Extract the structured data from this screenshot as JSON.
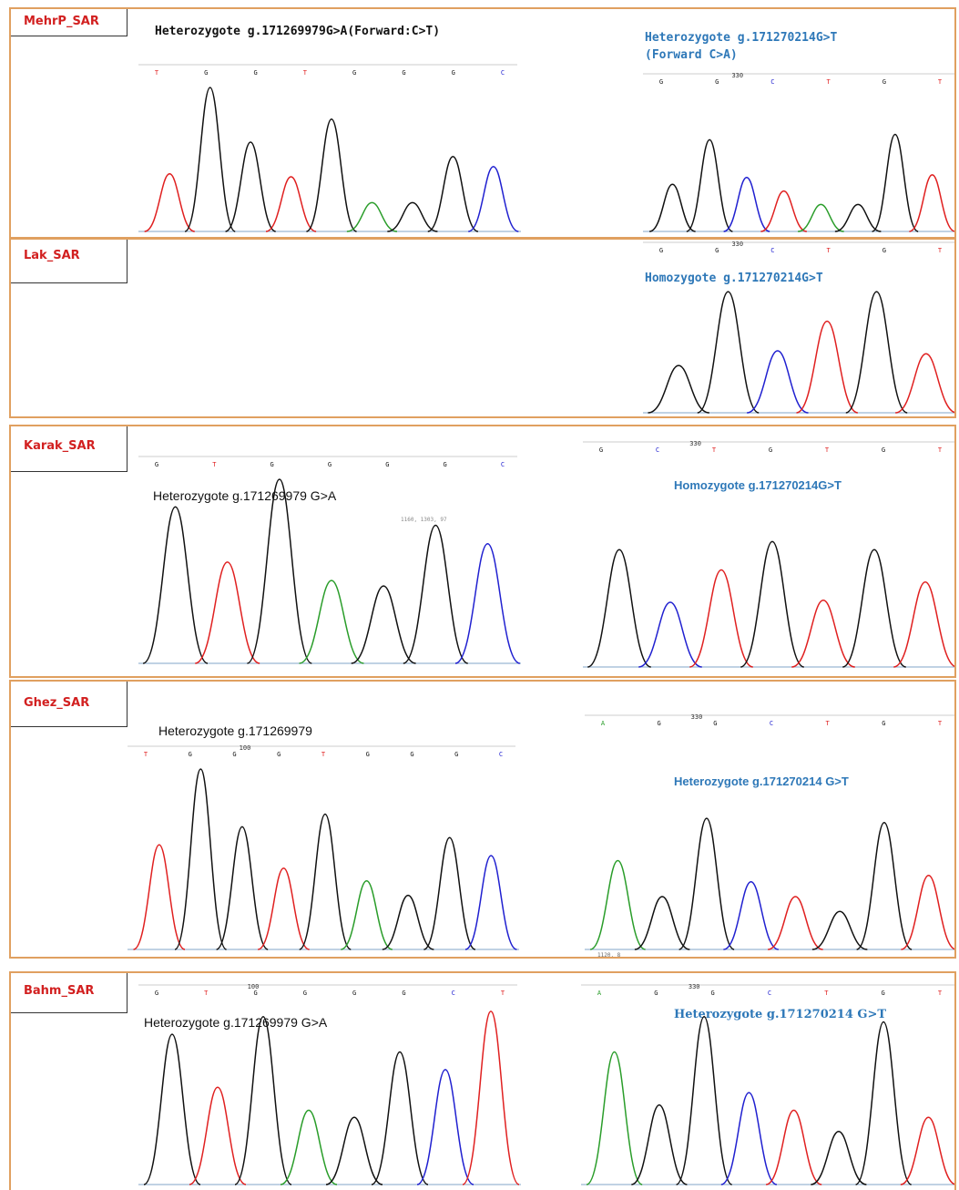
{
  "colors": {
    "A": "#2a9d2a",
    "C": "#2020d0",
    "G": "#111111",
    "T": "#e02020",
    "panel_border": "#e0a060",
    "sample_label": "#d22020",
    "annotation_blue": "#2e78b8"
  },
  "panels": [
    {
      "sample": "MehrP_SAR",
      "left_annotation": "Heterozygote g.171269979G>A(Forward:C>T)",
      "right_annotation_line1": "Heterozygote g.171270214G>T",
      "right_annotation_line2": "(Forward C>A)",
      "left_bases": [
        "T",
        "G",
        "G",
        "T",
        "G",
        "G",
        "G",
        "C"
      ],
      "left_pos_label": "",
      "right_bases": [
        "G",
        "G",
        "C",
        "T",
        "G",
        "T"
      ],
      "right_pos_label": "330",
      "left_peaks": [
        [
          "T",
          0.4
        ],
        [
          "G",
          1.0
        ],
        [
          "G",
          0.62
        ],
        [
          "T",
          0.38
        ],
        [
          "G",
          0.78
        ],
        [
          "A",
          0.2
        ],
        [
          "G",
          0.2
        ],
        [
          "G",
          0.52
        ],
        [
          "C",
          0.45
        ]
      ],
      "right_peaks": [
        [
          "G",
          0.35
        ],
        [
          "G",
          0.68
        ],
        [
          "C",
          0.4
        ],
        [
          "T",
          0.3
        ],
        [
          "A",
          0.2
        ],
        [
          "G",
          0.2
        ],
        [
          "G",
          0.72
        ],
        [
          "T",
          0.42
        ]
      ]
    },
    {
      "sample": "Lak_SAR",
      "right_annotation": "Homozygote g.171270214G>T",
      "right_bases": [
        "G",
        "G",
        "C",
        "T",
        "G",
        "T"
      ],
      "right_pos_label": "330",
      "right_peaks": [
        [
          "G",
          0.32
        ],
        [
          "G",
          0.82
        ],
        [
          "C",
          0.42
        ],
        [
          "T",
          0.62
        ],
        [
          "G",
          0.82
        ],
        [
          "T",
          0.4
        ]
      ]
    },
    {
      "sample": "Karak_SAR",
      "left_annotation": "Heterozygote g.171269979 G>A",
      "left_bases": [
        "G",
        "T",
        "G",
        "G",
        "G",
        "G",
        "C"
      ],
      "left_cursor_readout": "1160, 1303, 97",
      "right_annotation": "Homozygote g.171270214G>T",
      "right_bases": [
        "G",
        "C",
        "T",
        "G",
        "T",
        "G",
        "T"
      ],
      "right_pos_label": "330",
      "left_peaks": [
        [
          "G",
          0.85
        ],
        [
          "T",
          0.55
        ],
        [
          "G",
          1.0
        ],
        [
          "A",
          0.45
        ],
        [
          "G",
          0.42
        ],
        [
          "G",
          0.75
        ],
        [
          "C",
          0.65
        ]
      ],
      "right_peaks": [
        [
          "G",
          0.58
        ],
        [
          "C",
          0.32
        ],
        [
          "T",
          0.48
        ],
        [
          "G",
          0.62
        ],
        [
          "T",
          0.33
        ],
        [
          "G",
          0.58
        ],
        [
          "T",
          0.42
        ]
      ]
    },
    {
      "sample": "Ghez_SAR",
      "left_annotation": "Heterozygote g.171269979",
      "left_bases": [
        "T",
        "G",
        "G",
        "G",
        "T",
        "G",
        "G",
        "G",
        "C"
      ],
      "left_pos_label": "100",
      "right_annotation": "Heterozygote g.171270214 G>T",
      "right_bases": [
        "A",
        "G",
        "G",
        "C",
        "T",
        "G",
        "T"
      ],
      "right_pos_label": "330",
      "right_cursor_readout": "1120, 8",
      "left_peaks": [
        [
          "T",
          0.58
        ],
        [
          "G",
          1.0
        ],
        [
          "G",
          0.68
        ],
        [
          "T",
          0.45
        ],
        [
          "G",
          0.75
        ],
        [
          "A",
          0.38
        ],
        [
          "G",
          0.3
        ],
        [
          "G",
          0.62
        ],
        [
          "C",
          0.52
        ]
      ],
      "right_peaks": [
        [
          "A",
          0.42
        ],
        [
          "G",
          0.25
        ],
        [
          "G",
          0.62
        ],
        [
          "C",
          0.32
        ],
        [
          "T",
          0.25
        ],
        [
          "G",
          0.18
        ],
        [
          "G",
          0.6
        ],
        [
          "T",
          0.35
        ]
      ]
    },
    {
      "sample": "Bahm_SAR",
      "left_annotation": "Heterozygote g.171269979 G>A",
      "left_bases": [
        "G",
        "T",
        "G",
        "G",
        "G",
        "G",
        "C",
        "T"
      ],
      "left_pos_label": "100",
      "right_annotation": "Heterozygote g.171270214 G>T",
      "right_bases": [
        "A",
        "G",
        "G",
        "C",
        "T",
        "G",
        "T"
      ],
      "right_pos_label": "330",
      "left_peaks": [
        [
          "G",
          0.85
        ],
        [
          "T",
          0.55
        ],
        [
          "G",
          0.95
        ],
        [
          "A",
          0.42
        ],
        [
          "G",
          0.38
        ],
        [
          "G",
          0.75
        ],
        [
          "C",
          0.65
        ],
        [
          "T",
          0.98
        ]
      ],
      "right_peaks": [
        [
          "A",
          0.75
        ],
        [
          "G",
          0.45
        ],
        [
          "G",
          0.95
        ],
        [
          "C",
          0.52
        ],
        [
          "T",
          0.42
        ],
        [
          "G",
          0.3
        ],
        [
          "G",
          0.92
        ],
        [
          "T",
          0.38
        ]
      ]
    }
  ]
}
